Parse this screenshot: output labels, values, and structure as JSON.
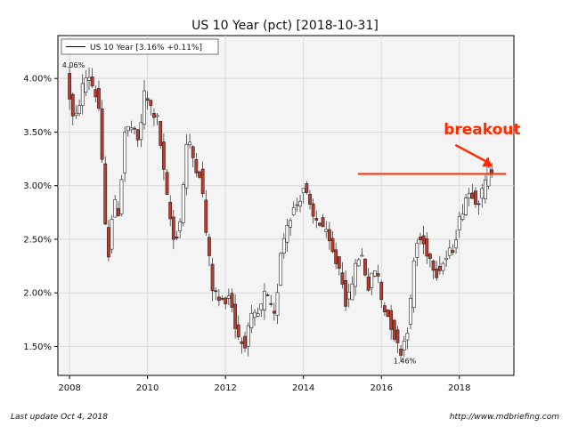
{
  "chart_data": {
    "type": "candlestick",
    "title": "US 10 Year (pct) [2018-10-31]",
    "legend": {
      "label": "US 10 Year [3.16% +0.11%]",
      "placement": "top-left"
    },
    "xlabel": "",
    "ylabel": "",
    "xlim": [
      2007.7,
      2019.4
    ],
    "ylim": [
      1.23,
      4.4
    ],
    "x_ticks": [
      2008,
      2010,
      2012,
      2014,
      2016,
      2018
    ],
    "x_tick_labels": [
      "2008",
      "2010",
      "2012",
      "2014",
      "2016",
      "2018"
    ],
    "y_ticks": [
      1.5,
      2.0,
      2.5,
      3.0,
      3.5,
      4.0
    ],
    "y_tick_labels": [
      "1.50%",
      "2.00%",
      "2.50%",
      "3.00%",
      "3.50%",
      "4.00%"
    ],
    "grid": true,
    "colors": {
      "up": "#ffffff",
      "down": "#c0392b",
      "wick": "#222222",
      "breakout": "#ff2a00",
      "plot_bg": "#f4f4f4"
    },
    "annotations": [
      {
        "text": "4.06%",
        "x": 2008.1,
        "y": 4.06
      },
      {
        "text": "1.46%",
        "x": 2016.6,
        "y": 1.46
      },
      {
        "text": "breakout",
        "x": 2017.6,
        "y": 3.48
      }
    ],
    "breakout_line": {
      "x_start": 2015.4,
      "x_end": 2019.2,
      "y": 3.11
    },
    "breakout_arrow": {
      "from": [
        2017.9,
        3.38
      ],
      "to": [
        2018.85,
        3.18
      ]
    },
    "anchors": [
      [
        2008.0,
        4.03
      ],
      [
        2008.2,
        3.55
      ],
      [
        2008.4,
        3.9
      ],
      [
        2008.55,
        4.06
      ],
      [
        2008.75,
        3.85
      ],
      [
        2008.85,
        3.7
      ],
      [
        2008.95,
        2.95
      ],
      [
        2009.05,
        2.25
      ],
      [
        2009.2,
        2.85
      ],
      [
        2009.35,
        2.75
      ],
      [
        2009.5,
        3.5
      ],
      [
        2009.65,
        3.55
      ],
      [
        2009.85,
        3.4
      ],
      [
        2010.0,
        3.85
      ],
      [
        2010.2,
        3.7
      ],
      [
        2010.35,
        3.6
      ],
      [
        2010.55,
        2.95
      ],
      [
        2010.75,
        2.5
      ],
      [
        2010.9,
        2.6
      ],
      [
        2011.1,
        3.45
      ],
      [
        2011.3,
        3.2
      ],
      [
        2011.45,
        3.1
      ],
      [
        2011.6,
        2.5
      ],
      [
        2011.75,
        2.05
      ],
      [
        2011.95,
        1.9
      ],
      [
        2012.2,
        2.0
      ],
      [
        2012.35,
        1.65
      ],
      [
        2012.55,
        1.5
      ],
      [
        2012.75,
        1.75
      ],
      [
        2012.95,
        1.8
      ],
      [
        2013.1,
        2.0
      ],
      [
        2013.35,
        1.75
      ],
      [
        2013.5,
        2.4
      ],
      [
        2013.7,
        2.7
      ],
      [
        2013.95,
        2.85
      ],
      [
        2014.1,
        3.0
      ],
      [
        2014.3,
        2.7
      ],
      [
        2014.55,
        2.65
      ],
      [
        2014.75,
        2.45
      ],
      [
        2014.9,
        2.3
      ],
      [
        2015.05,
        2.2
      ],
      [
        2015.2,
        1.85
      ],
      [
        2015.35,
        2.15
      ],
      [
        2015.55,
        2.4
      ],
      [
        2015.75,
        2.05
      ],
      [
        2015.95,
        2.25
      ],
      [
        2016.1,
        1.9
      ],
      [
        2016.3,
        1.75
      ],
      [
        2016.5,
        1.5
      ],
      [
        2016.6,
        1.46
      ],
      [
        2016.8,
        1.75
      ],
      [
        2016.95,
        2.45
      ],
      [
        2017.1,
        2.5
      ],
      [
        2017.3,
        2.35
      ],
      [
        2017.5,
        2.2
      ],
      [
        2017.7,
        2.3
      ],
      [
        2017.9,
        2.4
      ],
      [
        2018.1,
        2.7
      ],
      [
        2018.25,
        2.9
      ],
      [
        2018.4,
        2.95
      ],
      [
        2018.55,
        2.85
      ],
      [
        2018.7,
        2.95
      ],
      [
        2018.85,
        3.16
      ]
    ]
  },
  "footer": {
    "left": "Last update Oct  4, 2018",
    "right": "http://www.mdbriefing.com"
  }
}
